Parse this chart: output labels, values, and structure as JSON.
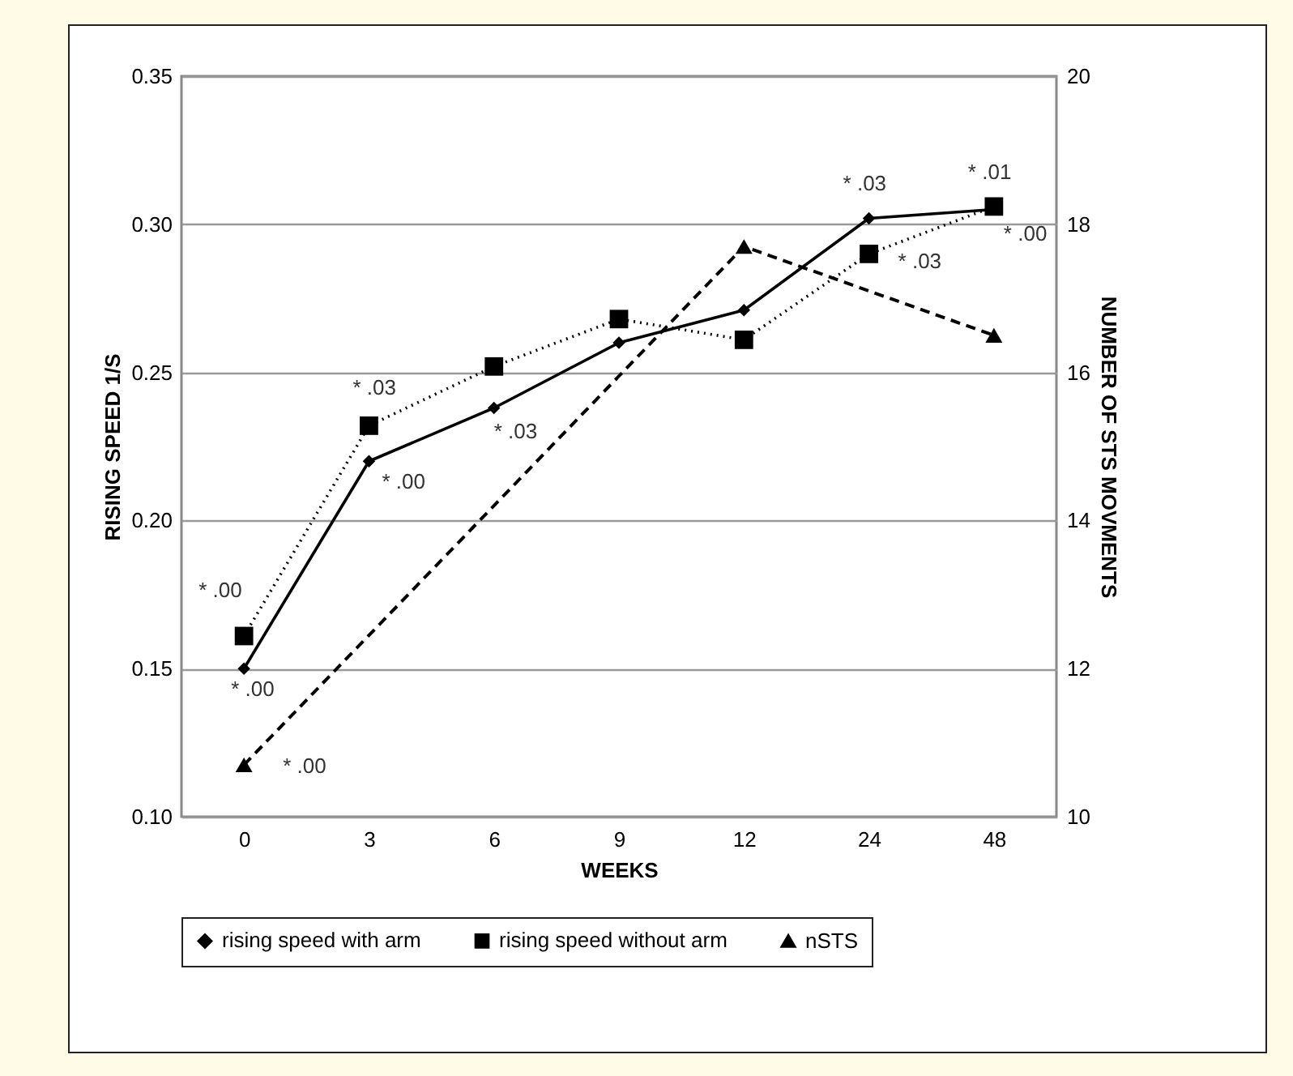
{
  "chart_data": {
    "type": "line",
    "xlabel": "WEEKS",
    "ylabel": "RISING SPEED  1/S",
    "y2label": "NUMBER OF STS MOVMENTS",
    "categories": [
      "0",
      "3",
      "6",
      "9",
      "12",
      "24",
      "48"
    ],
    "series": [
      {
        "name": "rising speed with arm",
        "color": "#000000",
        "line_style": "solid",
        "marker": "diamond",
        "values": [
          0.15,
          0.22,
          0.238,
          0.26,
          0.271,
          0.302,
          0.305
        ]
      },
      {
        "name": "rising speed without arm",
        "color": "#000000",
        "line_style": "dotted",
        "marker": "square",
        "values": [
          0.161,
          0.232,
          0.252,
          0.268,
          0.261,
          0.29,
          0.306
        ]
      },
      {
        "name": "nSTS",
        "color": "#000000",
        "line_style": "dashed",
        "marker": "triangle",
        "axis": "y2",
        "x": [
          "0",
          "12",
          "48"
        ],
        "values": [
          10.7,
          17.7,
          16.5
        ]
      }
    ],
    "ylim": [
      0.1,
      0.35
    ],
    "yticks": [
      {
        "value": 0.1,
        "label": "0.10"
      },
      {
        "value": 0.15,
        "label": "0.15"
      },
      {
        "value": 0.2,
        "label": "0.20"
      },
      {
        "value": 0.25,
        "label": "0.25"
      },
      {
        "value": 0.3,
        "label": "0.30"
      },
      {
        "value": 0.35,
        "label": "0.35"
      }
    ],
    "y2lim": [
      10,
      20
    ],
    "y2ticks": [
      10,
      12,
      14,
      16,
      18,
      20
    ],
    "grid": "y",
    "legend": "bottom",
    "annotations": [
      {
        "text": "* .00",
        "x": "0",
        "y": 0.161
      },
      {
        "text": "* .00",
        "x": "0",
        "y": 0.15
      },
      {
        "text": "* .00",
        "x": "0",
        "y": 0.117
      },
      {
        "text": "* .03",
        "x": "3",
        "y": 0.232
      },
      {
        "text": "* .00",
        "x": "3",
        "y": 0.22
      },
      {
        "text": "* .03",
        "x": "6",
        "y": 0.238
      },
      {
        "text": "* .03",
        "x": "24",
        "y": 0.302
      },
      {
        "text": "* .03",
        "x": "24",
        "y": 0.29
      },
      {
        "text": "* .01",
        "x": "48",
        "y": 0.306
      },
      {
        "text": "* .00",
        "x": "48",
        "y": 0.305
      }
    ]
  }
}
